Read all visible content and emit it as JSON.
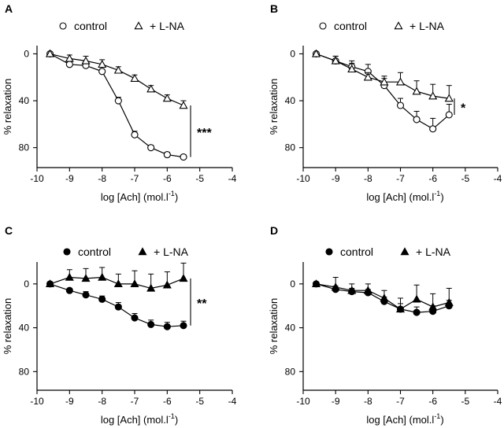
{
  "figure": {
    "colors": {
      "ink": "#000000",
      "open_fill": "#ffffff",
      "filled_fill": "#000000"
    }
  },
  "chart_data": [
    {
      "panel": "A",
      "type": "line",
      "xlabel": "log [Ach] (mol.l",
      "xlabel_sup": "-1",
      "xlabel_close": ")",
      "ylabel": "% relaxation",
      "xlim": [
        -10,
        -4
      ],
      "ylim": [
        -7,
        97
      ],
      "y_inverted": true,
      "x_ticks": [
        "-10",
        "-9",
        "-8",
        "-7",
        "-6",
        "-5",
        "-4"
      ],
      "y_ticks": [
        "0",
        "40",
        "80"
      ],
      "x_tick_values": [
        -10,
        -9,
        -8,
        -7,
        -6,
        -5,
        -4
      ],
      "y_tick_values": [
        0,
        40,
        80
      ],
      "marker_fill": "open",
      "x": [
        -9.6,
        -9,
        -8.5,
        -8,
        -7.5,
        -7,
        -6.5,
        -6,
        -5.5
      ],
      "series": [
        {
          "name": "control",
          "marker": "circle",
          "values": [
            0,
            9,
            10,
            15,
            40,
            69,
            80,
            86,
            88
          ],
          "errors": [
            0,
            2,
            2,
            2,
            3,
            3,
            2,
            2,
            2
          ]
        },
        {
          "name": "+ L-NA",
          "marker": "triangle",
          "values": [
            0,
            4,
            6,
            9,
            14,
            21,
            30,
            38,
            44
          ],
          "errors": [
            0,
            3,
            4,
            4,
            3,
            3,
            3,
            3,
            4
          ]
        }
      ],
      "significance": "***",
      "sig_range": [
        44,
        88
      ],
      "legend": [
        "control",
        "+ L-NA"
      ]
    },
    {
      "panel": "B",
      "type": "line",
      "xlabel": "log [Ach] (mol.l",
      "xlabel_sup": "-1",
      "xlabel_close": ")",
      "ylabel": "% relaxation",
      "xlim": [
        -10,
        -4
      ],
      "ylim": [
        -7,
        97
      ],
      "y_inverted": true,
      "x_ticks": [
        "-10",
        "-9",
        "-8",
        "-7",
        "-6",
        "-5",
        "-4"
      ],
      "y_ticks": [
        "0",
        "40",
        "80"
      ],
      "x_tick_values": [
        -10,
        -9,
        -8,
        -7,
        -6,
        -5,
        -4
      ],
      "y_tick_values": [
        0,
        40,
        80
      ],
      "marker_fill": "open",
      "x": [
        -9.6,
        -9,
        -8.5,
        -8,
        -7.5,
        -7,
        -6.5,
        -6,
        -5.5
      ],
      "series": [
        {
          "name": "control",
          "marker": "circle",
          "values": [
            0,
            6,
            11,
            15,
            27,
            44,
            56,
            64,
            52
          ],
          "errors": [
            0,
            4,
            5,
            6,
            6,
            6,
            7,
            9,
            9
          ]
        },
        {
          "name": "+ L-NA",
          "marker": "triangle",
          "values": [
            0,
            6,
            13,
            20,
            24,
            24,
            32,
            36,
            38
          ],
          "errors": [
            0,
            4,
            5,
            4,
            5,
            8,
            9,
            10,
            11
          ]
        }
      ],
      "significance": "*",
      "sig_range": [
        38,
        52
      ],
      "legend": [
        "control",
        "+ L-NA"
      ]
    },
    {
      "panel": "C",
      "type": "line",
      "xlabel": "log [Ach] (mol.l",
      "xlabel_sup": "-1",
      "xlabel_close": ")",
      "ylabel": "% relaxation",
      "xlim": [
        -10,
        -4
      ],
      "ylim": [
        -20,
        97
      ],
      "y_inverted": true,
      "x_ticks": [
        "-10",
        "-9",
        "-8",
        "-7",
        "-6",
        "-5",
        "-4"
      ],
      "y_ticks": [
        "0",
        "40",
        "80"
      ],
      "x_tick_values": [
        -10,
        -9,
        -8,
        -7,
        -6,
        -5,
        -4
      ],
      "y_tick_values": [
        0,
        40,
        80
      ],
      "marker_fill": "filled",
      "x": [
        -9.6,
        -9,
        -8.5,
        -8,
        -7.5,
        -7,
        -6.5,
        -6,
        -5.5
      ],
      "series": [
        {
          "name": "control",
          "marker": "circle",
          "values": [
            0,
            6,
            10,
            14,
            21,
            31,
            37,
            39,
            38
          ],
          "errors": [
            0,
            2,
            3,
            3,
            4,
            4,
            4,
            4,
            4
          ]
        },
        {
          "name": "+ L-NA",
          "marker": "triangle",
          "values": [
            0,
            -6,
            -5,
            -6,
            0,
            0,
            4,
            1,
            -5
          ],
          "errors": [
            0,
            7,
            9,
            9,
            9,
            12,
            13,
            12,
            14
          ]
        }
      ],
      "significance": "**",
      "sig_range": [
        -5,
        38
      ],
      "legend": [
        "control",
        "+ L-NA"
      ]
    },
    {
      "panel": "D",
      "type": "line",
      "xlabel": "log [Ach] (mol.l",
      "xlabel_sup": "-1",
      "xlabel_close": ")",
      "ylabel": "% relaxation",
      "xlim": [
        -10,
        -4
      ],
      "ylim": [
        -20,
        97
      ],
      "y_inverted": true,
      "x_ticks": [
        "-10",
        "-9",
        "-8",
        "-7",
        "-6",
        "-5",
        "-4"
      ],
      "y_ticks": [
        "0",
        "40",
        "80"
      ],
      "x_tick_values": [
        -10,
        -9,
        -8,
        -7,
        -6,
        -5,
        -4
      ],
      "y_tick_values": [
        0,
        40,
        80
      ],
      "marker_fill": "filled",
      "x": [
        -9.6,
        -9,
        -8.5,
        -8,
        -7.5,
        -7,
        -6.5,
        -6,
        -5.5
      ],
      "series": [
        {
          "name": "control",
          "marker": "circle",
          "values": [
            0,
            5,
            7,
            8,
            16,
            23,
            26,
            25,
            20
          ],
          "errors": [
            0,
            3,
            3,
            3,
            4,
            5,
            5,
            5,
            5
          ]
        },
        {
          "name": "+ L-NA",
          "marker": "triangle",
          "values": [
            0,
            3,
            6,
            6,
            13,
            23,
            14,
            21,
            17
          ],
          "errors": [
            0,
            9,
            6,
            6,
            7,
            10,
            13,
            12,
            13
          ]
        }
      ],
      "legend": [
        "control",
        "+ L-NA"
      ]
    }
  ]
}
